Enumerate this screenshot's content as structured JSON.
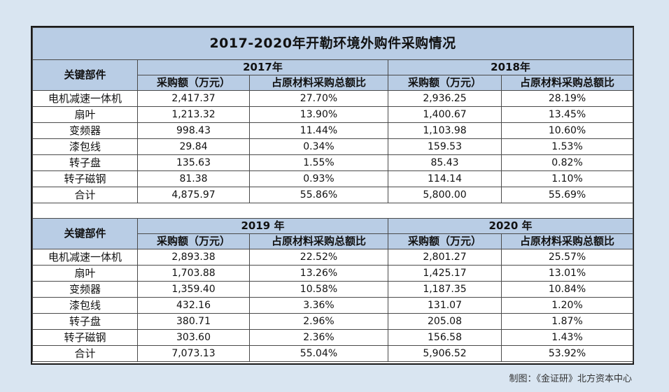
{
  "chart_data": {
    "type": "table",
    "title": "2017-2020年开勒环境外购件采购情况",
    "row_header": "关键部件",
    "column_headers": [
      "采购额（万元）",
      "占原材料采购总额比"
    ],
    "rows": [
      "电机减速一体机",
      "扇叶",
      "变频器",
      "漆包线",
      "转子盘",
      "转子磁钢",
      "合计"
    ],
    "sections": [
      {
        "years": [
          {
            "label": "2017年",
            "values": [
              [
                "2,417.37",
                "27.70%"
              ],
              [
                "1,213.32",
                "13.90%"
              ],
              [
                "998.43",
                "11.44%"
              ],
              [
                "29.84",
                "0.34%"
              ],
              [
                "135.63",
                "1.55%"
              ],
              [
                "81.38",
                "0.93%"
              ],
              [
                "4,875.97",
                "55.86%"
              ]
            ]
          },
          {
            "label": "2018年",
            "values": [
              [
                "2,936.25",
                "28.19%"
              ],
              [
                "1,400.67",
                "13.45%"
              ],
              [
                "1,103.98",
                "10.60%"
              ],
              [
                "159.53",
                "1.53%"
              ],
              [
                "85.43",
                "0.82%"
              ],
              [
                "114.14",
                "1.10%"
              ],
              [
                "5,800.00",
                "55.69%"
              ]
            ]
          }
        ]
      },
      {
        "years": [
          {
            "label": "2019 年",
            "values": [
              [
                "2,893.38",
                "22.52%"
              ],
              [
                "1,703.88",
                "13.26%"
              ],
              [
                "1,359.40",
                "10.58%"
              ],
              [
                "432.16",
                "3.36%"
              ],
              [
                "380.71",
                "2.96%"
              ],
              [
                "303.60",
                "2.36%"
              ],
              [
                "7,073.13",
                "55.04%"
              ]
            ]
          },
          {
            "label": "2020 年",
            "values": [
              [
                "2,801.27",
                "25.57%"
              ],
              [
                "1,425.17",
                "13.01%"
              ],
              [
                "1,187.35",
                "10.84%"
              ],
              [
                "131.07",
                "1.20%"
              ],
              [
                "205.08",
                "1.87%"
              ],
              [
                "156.58",
                "1.43%"
              ],
              [
                "5,906.52",
                "53.92%"
              ]
            ]
          }
        ]
      }
    ]
  },
  "credit": "制图：《金证研》北方资本中心"
}
